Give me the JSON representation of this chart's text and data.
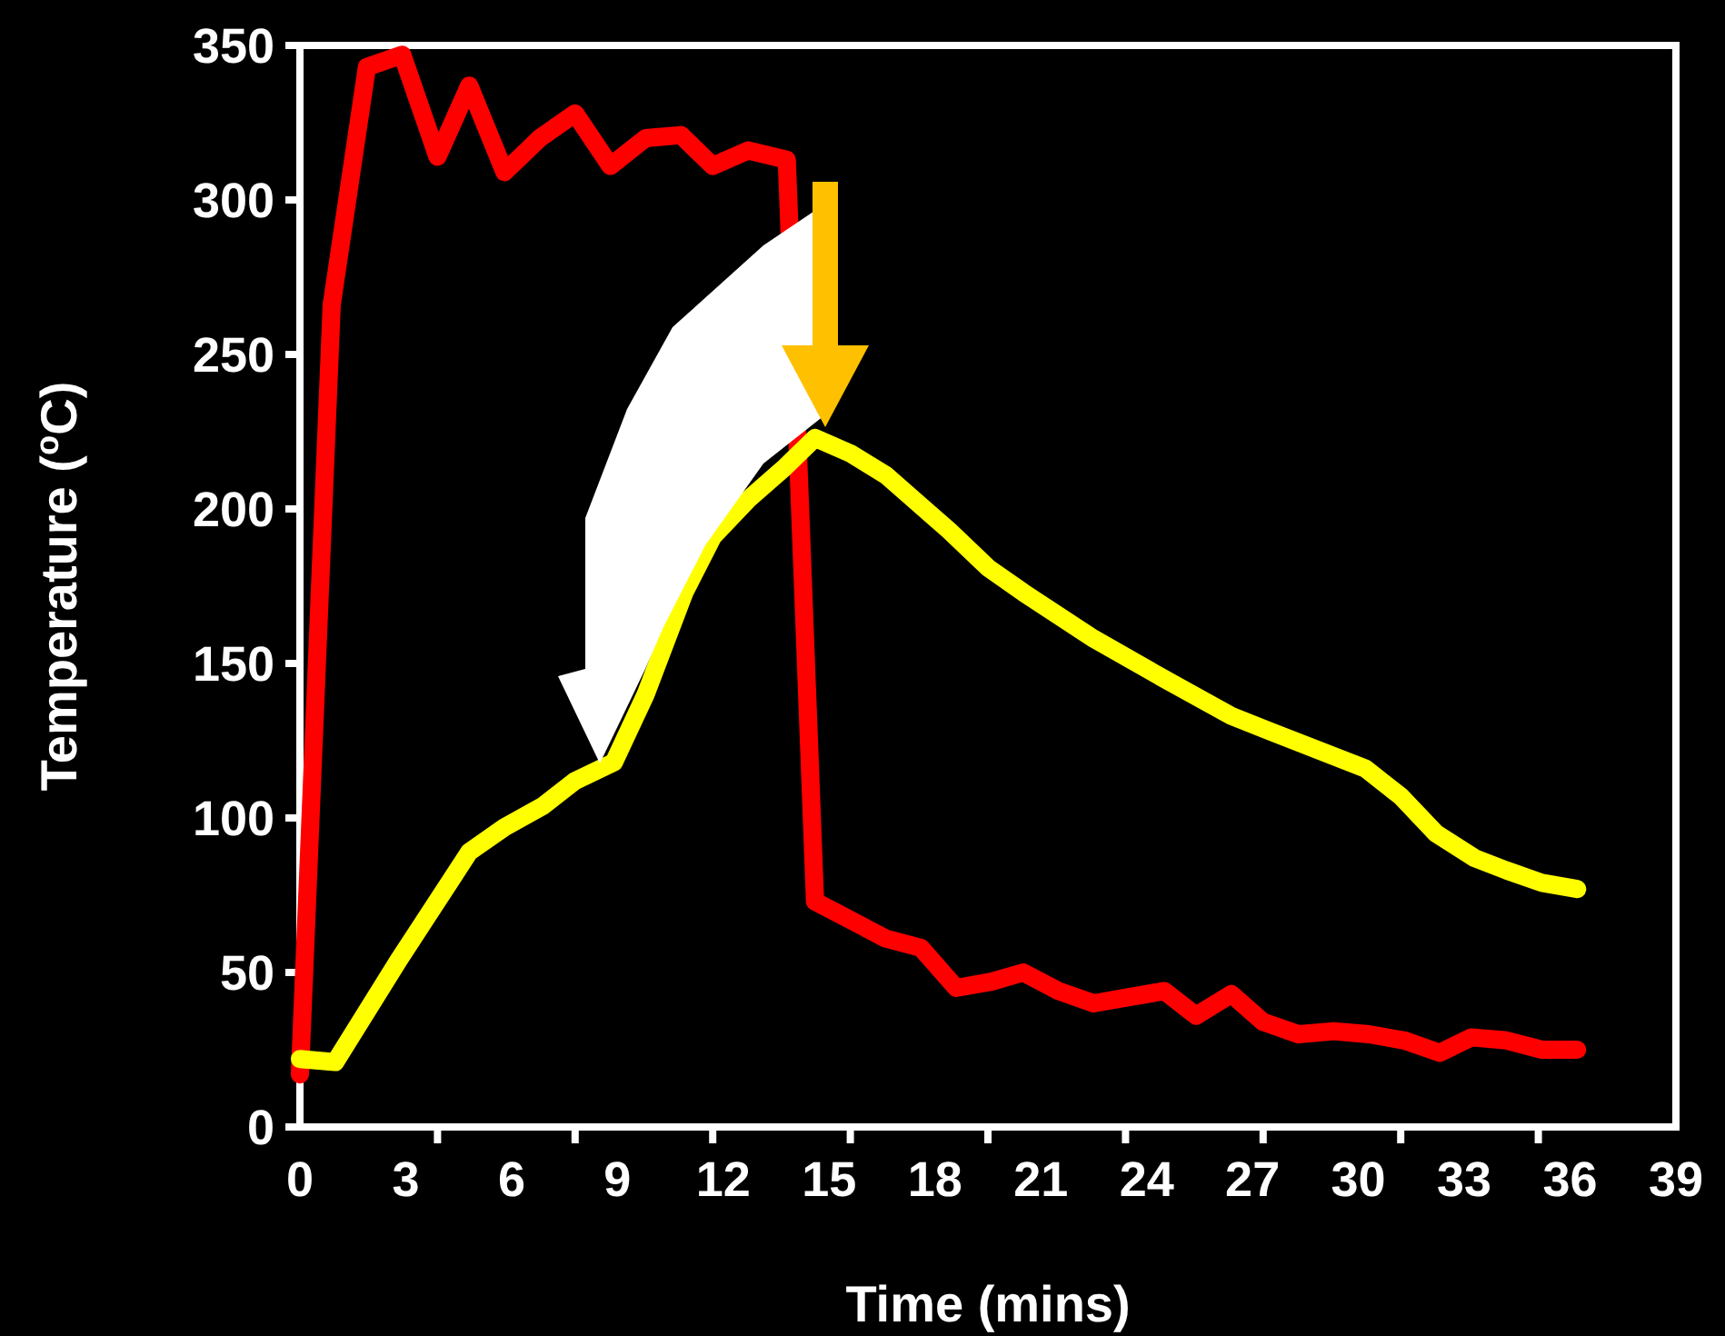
{
  "chart_data": {
    "type": "line",
    "xlabel": "Time (mins)",
    "ylabel": "Temperature ($^{o}$C)",
    "xlim": [
      0,
      39
    ],
    "ylim": [
      0,
      350
    ],
    "xticks": [
      0,
      3,
      6,
      9,
      12,
      15,
      18,
      21,
      24,
      27,
      30,
      33,
      36,
      39,
      {
        "value": 3.9,
        "label": null
      },
      {
        "value": 7.8,
        "label": null
      },
      {
        "value": 11.7,
        "label": null
      },
      {
        "value": 15.6,
        "label": null
      },
      {
        "value": 19.5,
        "label": null
      },
      {
        "value": 23.4,
        "label": null
      },
      {
        "value": 27.3,
        "label": null
      },
      {
        "value": 31.2,
        "label": null
      },
      {
        "value": 35.1,
        "label": null
      }
    ],
    "yticks": [
      0,
      50,
      100,
      150,
      200,
      250,
      300,
      350
    ],
    "marker": "none",
    "line_style": "solid",
    "series": [
      {
        "color": "#ff0000",
        "x": [
          0,
          0.9,
          1.9,
          2.9,
          3.9,
          4.8,
          5.8,
          6.8,
          7.8,
          8.8,
          9.8,
          10.8,
          11.7,
          12.7,
          13.8,
          14.6,
          15.6,
          16.6,
          17.6,
          18.6,
          19.6,
          20.5,
          21.5,
          22.5,
          23.5,
          24.5,
          25.4,
          26.4,
          27.3,
          28.3,
          29.3,
          30.3,
          31.3,
          32.3,
          33.2,
          34.2,
          35.2,
          36.2
        ],
        "values": [
          17,
          266,
          343,
          347,
          314,
          337,
          309,
          320,
          328,
          311,
          320,
          321,
          311,
          316,
          313,
          73,
          67,
          61,
          58,
          45,
          47,
          50,
          44,
          40,
          42,
          44,
          36,
          43,
          34,
          30,
          31,
          30,
          28,
          24,
          29,
          28,
          25,
          25
        ]
      },
      {
        "color": "#ffff00",
        "x": [
          0,
          1,
          2.8,
          4.8,
          5.8,
          6.9,
          7.8,
          8.9,
          9.8,
          10.9,
          11.7,
          12.7,
          13.7,
          14.6,
          15.6,
          16.6,
          18.4,
          19.5,
          20.5,
          22.5,
          24.5,
          26.4,
          27.5,
          30.2,
          31.2,
          32.2,
          33.3,
          34.2,
          35.2,
          36.2
        ],
        "values": [
          22,
          21,
          54,
          89,
          97,
          104,
          112,
          118,
          140,
          173,
          191,
          203,
          213,
          223,
          218,
          211,
          193,
          181,
          173,
          158,
          145,
          133,
          128,
          116,
          107,
          95,
          87,
          83,
          79,
          77
        ]
      }
    ]
  }
}
